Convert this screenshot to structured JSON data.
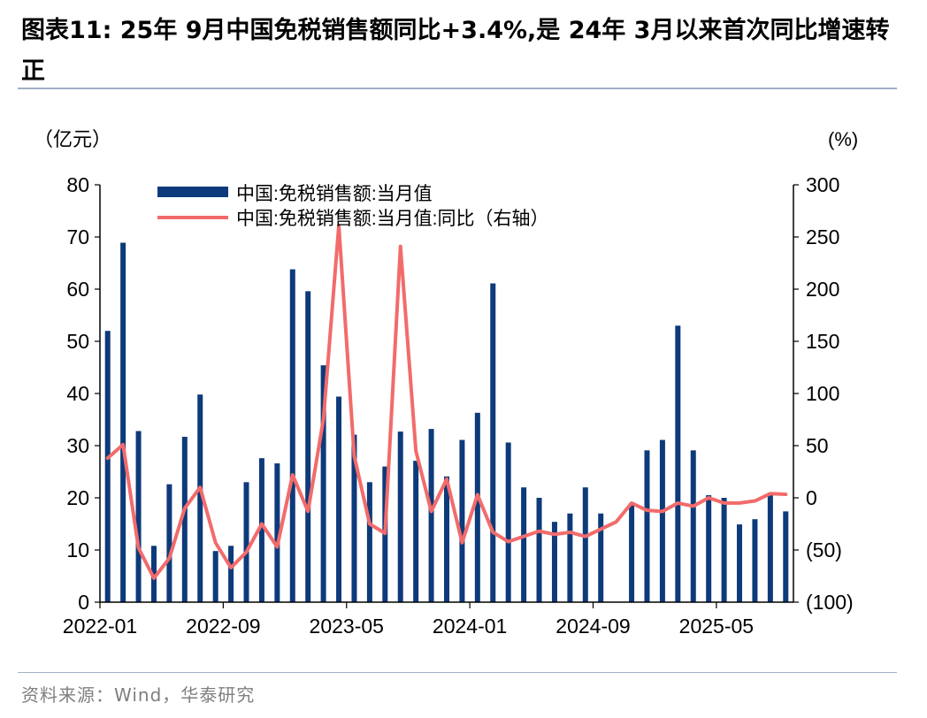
{
  "title": "图表11:  25年 9月中国免税销售额同比+3.4%,是 24年 3月以来首次同比增速转正",
  "source": "资料来源：Wind，华泰研究",
  "colors": {
    "bar": "#0d3a7a",
    "line": "#f26b6b",
    "axis": "#000000"
  },
  "chart_data": {
    "type": "bar+line",
    "title": "25年 9月中国免税销售额同比+3.4%,是 24年 3月以来首次同比增速转正",
    "left_axis_unit": "（亿元）",
    "right_axis_unit": "(%)",
    "ylim_left": [
      0,
      80
    ],
    "ylim_right": [
      -100,
      300
    ],
    "left_ticks": [
      "0",
      "10",
      "20",
      "30",
      "40",
      "50",
      "60",
      "70",
      "80"
    ],
    "right_ticks": [
      "(100)",
      "(50)",
      "0",
      "50",
      "100",
      "150",
      "200",
      "250",
      "300"
    ],
    "x_ticks": [
      "2022-01",
      "2022-09",
      "2023-05",
      "2024-01",
      "2024-09",
      "2025-05"
    ],
    "x_tick_index": [
      0,
      8,
      16,
      24,
      32,
      40
    ],
    "legend": {
      "position": "top-left",
      "bar_label": "中国:免税销售额:当月值",
      "line_label": "中国:免税销售额:当月值:同比（右轴）"
    },
    "categories": [
      "2022-01",
      "2022-02",
      "2022-03",
      "2022-04",
      "2022-05",
      "2022-06",
      "2022-07",
      "2022-08",
      "2022-09",
      "2022-10",
      "2022-11",
      "2022-12",
      "2023-01",
      "2023-02",
      "2023-03",
      "2023-04",
      "2023-05",
      "2023-06",
      "2023-07",
      "2023-08",
      "2023-09",
      "2023-10",
      "2023-11",
      "2023-12",
      "2024-01",
      "2024-02",
      "2024-03",
      "2024-04",
      "2024-05",
      "2024-06",
      "2024-07",
      "2024-08",
      "2024-09",
      "2024-10",
      "2024-11",
      "2024-12",
      "2025-01",
      "2025-02",
      "2025-03",
      "2025-04",
      "2025-05",
      "2025-06",
      "2025-07",
      "2025-08",
      "2025-09"
    ],
    "series": [
      {
        "type": "bar",
        "axis": "left",
        "values": [
          52.0,
          68.9,
          32.8,
          10.8,
          22.6,
          31.7,
          39.8,
          9.8,
          10.8,
          23.0,
          27.6,
          26.6,
          63.8,
          59.6,
          45.4,
          39.4,
          32.1,
          23.0,
          26.0,
          32.7,
          27.1,
          33.2,
          24.1,
          31.1,
          36.3,
          61.1,
          30.6,
          22.0,
          20.0,
          15.4,
          17.0,
          22.0,
          17.0,
          null,
          19.0,
          29.1,
          31.1,
          53.0,
          29.1,
          20.5,
          20.0,
          14.9,
          15.9,
          21.0,
          17.4
        ]
      },
      {
        "type": "line",
        "axis": "right",
        "values": [
          38,
          51,
          -48,
          -77,
          -58,
          -10,
          10,
          -43,
          -67,
          -52,
          -25,
          -47,
          22,
          -13,
          75,
          261,
          40,
          -25,
          -34,
          241,
          45,
          -13,
          18,
          -43,
          3,
          -33,
          -42,
          -37,
          -32,
          -35,
          -33,
          -37,
          -30,
          -23,
          -5,
          -12,
          -13,
          -5,
          -8,
          0,
          -5,
          -5,
          -3,
          4,
          3.4
        ]
      }
    ]
  }
}
